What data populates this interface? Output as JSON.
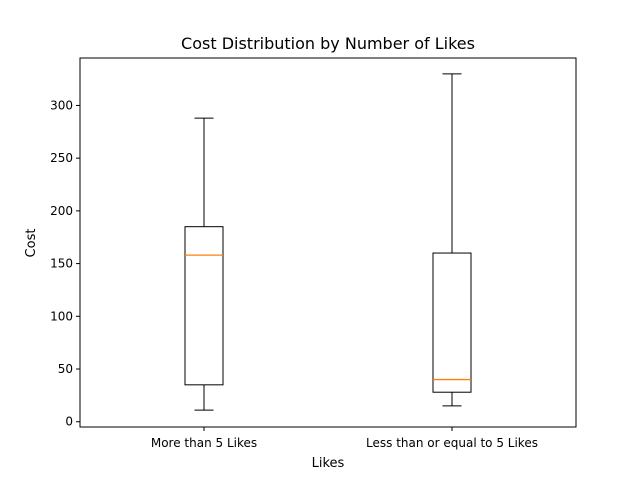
{
  "chart_data": {
    "type": "boxplot",
    "title": "Cost Distribution by Number of Likes",
    "xlabel": "Likes",
    "ylabel": "Cost",
    "categories": [
      "More than 5 Likes",
      "Less than or equal to 5 Likes"
    ],
    "boxes": [
      {
        "category": "More than 5 Likes",
        "whisker_low": 11,
        "q1": 35,
        "median": 158,
        "q3": 185,
        "whisker_high": 288
      },
      {
        "category": "Less than or equal to 5 Likes",
        "whisker_low": 15,
        "q1": 28,
        "median": 40,
        "q3": 160,
        "whisker_high": 330
      }
    ],
    "yticks": [
      0,
      50,
      100,
      150,
      200,
      250,
      300
    ],
    "ylim": [
      -5,
      345
    ],
    "grid": false,
    "colors": {
      "box": "#000000",
      "median": "#ff7f0e",
      "background": "#ffffff"
    }
  }
}
